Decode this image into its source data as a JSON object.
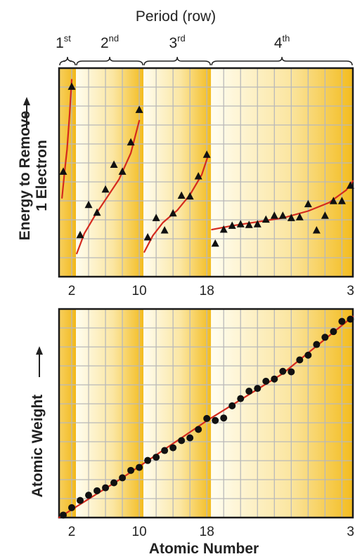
{
  "chart_data": {
    "period_header": {
      "title": "Period (row)",
      "labels": [
        {
          "base": "1",
          "sup": "st",
          "x_from": 0.5,
          "x_to": 2.5
        },
        {
          "base": "2",
          "sup": "nd",
          "x_from": 2.5,
          "x_to": 10.5
        },
        {
          "base": "3",
          "sup": "rd",
          "x_from": 10.5,
          "x_to": 18.5
        },
        {
          "base": "4",
          "sup": "th",
          "x_from": 18.5,
          "x_to": 36.5
        }
      ]
    },
    "xlabel": "Atomic Number",
    "x_ticks": [
      "2",
      "10",
      "18",
      "3"
    ],
    "xlim": [
      0.5,
      35.3
    ],
    "panels": [
      {
        "type": "scatter",
        "ylabel_lines": [
          "Energy to Remove",
          "1 Electron"
        ],
        "marker": "triangle",
        "ylim": [
          0,
          27
        ],
        "points": [
          [
            1,
            13.6
          ],
          [
            2,
            24.6
          ],
          [
            3,
            5.4
          ],
          [
            4,
            9.3
          ],
          [
            5,
            8.3
          ],
          [
            6,
            11.3
          ],
          [
            7,
            14.5
          ],
          [
            8,
            13.6
          ],
          [
            9,
            17.4
          ],
          [
            10,
            21.6
          ],
          [
            11,
            5.1
          ],
          [
            12,
            7.6
          ],
          [
            13,
            6.0
          ],
          [
            14,
            8.2
          ],
          [
            15,
            10.5
          ],
          [
            16,
            10.4
          ],
          [
            17,
            13.0
          ],
          [
            18,
            15.8
          ],
          [
            19,
            4.3
          ],
          [
            20,
            6.1
          ],
          [
            21,
            6.6
          ],
          [
            22,
            6.8
          ],
          [
            23,
            6.7
          ],
          [
            24,
            6.8
          ],
          [
            25,
            7.4
          ],
          [
            26,
            7.9
          ],
          [
            27,
            7.9
          ],
          [
            28,
            7.6
          ],
          [
            29,
            7.7
          ],
          [
            30,
            9.4
          ],
          [
            31,
            6.0
          ],
          [
            32,
            7.9
          ],
          [
            33,
            9.8
          ],
          [
            34,
            9.8
          ],
          [
            35,
            11.8
          ]
        ],
        "trend_segments": [
          [
            [
              0.85,
              10.2
            ],
            [
              1.15,
              13.5
            ],
            [
              1.45,
              16.5
            ],
            [
              1.75,
              21.0
            ],
            [
              2.0,
              25.5
            ]
          ],
          [
            [
              2.6,
              3.0
            ],
            [
              3.5,
              5.6
            ],
            [
              4.8,
              8.0
            ],
            [
              6.2,
              10.3
            ],
            [
              7.6,
              12.6
            ],
            [
              9.0,
              16.0
            ],
            [
              10.0,
              20.2
            ]
          ],
          [
            [
              10.6,
              3.2
            ],
            [
              11.6,
              5.3
            ],
            [
              12.8,
              7.0
            ],
            [
              14.5,
              8.6
            ],
            [
              16.0,
              10.6
            ],
            [
              17.4,
              13.2
            ],
            [
              18.1,
              15.5
            ]
          ],
          [
            [
              18.6,
              6.1
            ],
            [
              21.0,
              6.6
            ],
            [
              24.0,
              7.1
            ],
            [
              27.0,
              7.6
            ],
            [
              30.0,
              8.5
            ],
            [
              32.5,
              9.6
            ],
            [
              34.5,
              11.2
            ],
            [
              35.3,
              12.4
            ]
          ]
        ]
      },
      {
        "type": "scatter",
        "ylabel_lines": [
          "Atomic Weight"
        ],
        "marker": "circle",
        "ylim": [
          0,
          84
        ],
        "points": [
          [
            1,
            1.0
          ],
          [
            2,
            4.0
          ],
          [
            3,
            6.9
          ],
          [
            4,
            9.0
          ],
          [
            5,
            10.8
          ],
          [
            6,
            12.0
          ],
          [
            7,
            14.0
          ],
          [
            8,
            16.0
          ],
          [
            9,
            19.0
          ],
          [
            10,
            20.2
          ],
          [
            11,
            23.0
          ],
          [
            12,
            24.3
          ],
          [
            13,
            27.0
          ],
          [
            14,
            28.1
          ],
          [
            15,
            31.0
          ],
          [
            16,
            32.1
          ],
          [
            17,
            35.5
          ],
          [
            18,
            39.9
          ],
          [
            19,
            39.1
          ],
          [
            20,
            40.1
          ],
          [
            21,
            45.0
          ],
          [
            22,
            47.9
          ],
          [
            23,
            50.9
          ],
          [
            24,
            52.0
          ],
          [
            25,
            54.9
          ],
          [
            26,
            55.8
          ],
          [
            27,
            58.9
          ],
          [
            28,
            58.7
          ],
          [
            29,
            63.5
          ],
          [
            30,
            65.4
          ],
          [
            31,
            69.7
          ],
          [
            32,
            72.6
          ],
          [
            33,
            74.9
          ],
          [
            34,
            79.0
          ],
          [
            35,
            79.9
          ]
        ],
        "trend_segments": [
          [
            [
              0.5,
              0.0
            ],
            [
              8.0,
              16.0
            ],
            [
              18.0,
              39.0
            ],
            [
              27.0,
              58.0
            ],
            [
              35.3,
              81.0
            ]
          ]
        ]
      }
    ]
  }
}
